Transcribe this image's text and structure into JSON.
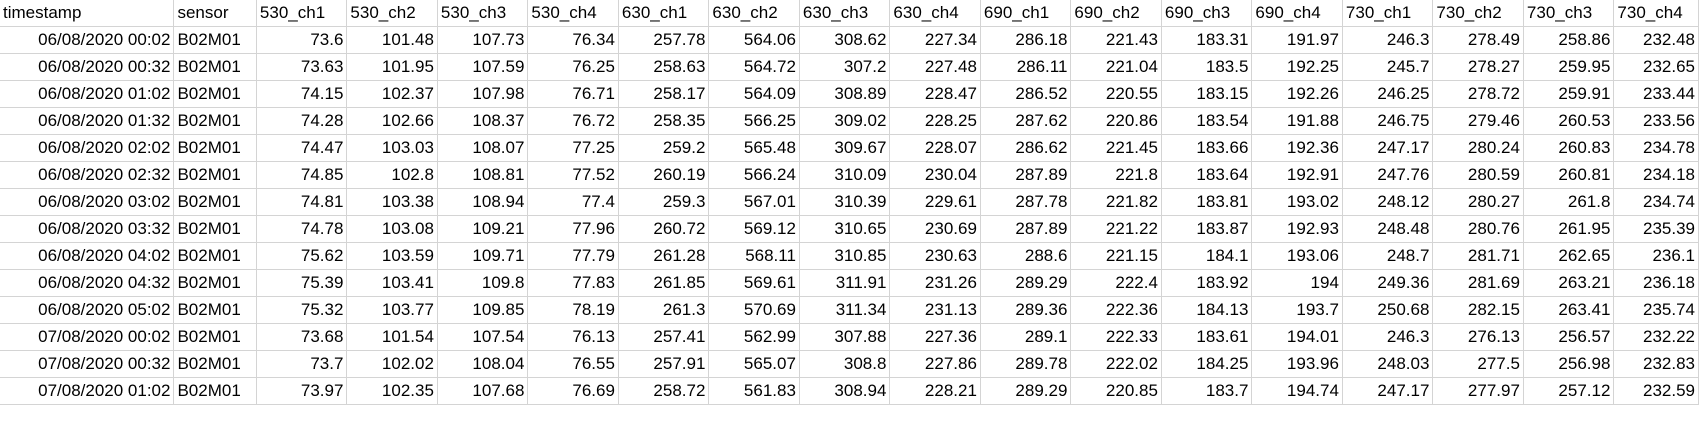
{
  "sheet": {
    "columns": [
      "timestamp",
      "sensor",
      "530_ch1",
      "530_ch2",
      "530_ch3",
      "530_ch4",
      "630_ch1",
      "630_ch2",
      "630_ch3",
      "630_ch4",
      "690_ch1",
      "690_ch2",
      "690_ch3",
      "690_ch4",
      "730_ch1",
      "730_ch2",
      "730_ch3",
      "730_ch4"
    ],
    "rows": [
      [
        "06/08/2020 00:02",
        "B02M01",
        "73.6",
        "101.48",
        "107.73",
        "76.34",
        "257.78",
        "564.06",
        "308.62",
        "227.34",
        "286.18",
        "221.43",
        "183.31",
        "191.97",
        "246.3",
        "278.49",
        "258.86",
        "232.48"
      ],
      [
        "06/08/2020 00:32",
        "B02M01",
        "73.63",
        "101.95",
        "107.59",
        "76.25",
        "258.63",
        "564.72",
        "307.2",
        "227.48",
        "286.11",
        "221.04",
        "183.5",
        "192.25",
        "245.7",
        "278.27",
        "259.95",
        "232.65"
      ],
      [
        "06/08/2020 01:02",
        "B02M01",
        "74.15",
        "102.37",
        "107.98",
        "76.71",
        "258.17",
        "564.09",
        "308.89",
        "228.47",
        "286.52",
        "220.55",
        "183.15",
        "192.26",
        "246.25",
        "278.72",
        "259.91",
        "233.44"
      ],
      [
        "06/08/2020 01:32",
        "B02M01",
        "74.28",
        "102.66",
        "108.37",
        "76.72",
        "258.35",
        "566.25",
        "309.02",
        "228.25",
        "287.62",
        "220.86",
        "183.54",
        "191.88",
        "246.75",
        "279.46",
        "260.53",
        "233.56"
      ],
      [
        "06/08/2020 02:02",
        "B02M01",
        "74.47",
        "103.03",
        "108.07",
        "77.25",
        "259.2",
        "565.48",
        "309.67",
        "228.07",
        "286.62",
        "221.45",
        "183.66",
        "192.36",
        "247.17",
        "280.24",
        "260.83",
        "234.78"
      ],
      [
        "06/08/2020 02:32",
        "B02M01",
        "74.85",
        "102.8",
        "108.81",
        "77.52",
        "260.19",
        "566.24",
        "310.09",
        "230.04",
        "287.89",
        "221.8",
        "183.64",
        "192.91",
        "247.76",
        "280.59",
        "260.81",
        "234.18"
      ],
      [
        "06/08/2020 03:02",
        "B02M01",
        "74.81",
        "103.38",
        "108.94",
        "77.4",
        "259.3",
        "567.01",
        "310.39",
        "229.61",
        "287.78",
        "221.82",
        "183.81",
        "193.02",
        "248.12",
        "280.27",
        "261.8",
        "234.74"
      ],
      [
        "06/08/2020 03:32",
        "B02M01",
        "74.78",
        "103.08",
        "109.21",
        "77.96",
        "260.72",
        "569.12",
        "310.65",
        "230.69",
        "287.89",
        "221.22",
        "183.87",
        "192.93",
        "248.48",
        "280.76",
        "261.95",
        "235.39"
      ],
      [
        "06/08/2020 04:02",
        "B02M01",
        "75.62",
        "103.59",
        "109.71",
        "77.79",
        "261.28",
        "568.11",
        "310.85",
        "230.63",
        "288.6",
        "221.15",
        "184.1",
        "193.06",
        "248.7",
        "281.71",
        "262.65",
        "236.1"
      ],
      [
        "06/08/2020 04:32",
        "B02M01",
        "75.39",
        "103.41",
        "109.8",
        "77.83",
        "261.85",
        "569.61",
        "311.91",
        "231.26",
        "289.29",
        "222.4",
        "183.92",
        "194",
        "249.36",
        "281.69",
        "263.21",
        "236.18"
      ],
      [
        "06/08/2020 05:02",
        "B02M01",
        "75.32",
        "103.77",
        "109.85",
        "78.19",
        "261.3",
        "570.69",
        "311.34",
        "231.13",
        "289.36",
        "222.36",
        "184.13",
        "193.7",
        "250.68",
        "282.15",
        "263.41",
        "235.74"
      ],
      [
        "07/08/2020 00:02",
        "B02M01",
        "73.68",
        "101.54",
        "107.54",
        "76.13",
        "257.41",
        "562.99",
        "307.88",
        "227.36",
        "289.1",
        "222.33",
        "183.61",
        "194.01",
        "246.3",
        "276.13",
        "256.57",
        "232.22"
      ],
      [
        "07/08/2020 00:32",
        "B02M01",
        "73.7",
        "102.02",
        "108.04",
        "76.55",
        "257.91",
        "565.07",
        "308.8",
        "227.86",
        "289.78",
        "222.02",
        "184.25",
        "193.96",
        "248.03",
        "277.5",
        "256.98",
        "232.83"
      ],
      [
        "07/08/2020 01:02",
        "B02M01",
        "73.97",
        "102.35",
        "107.68",
        "76.69",
        "258.72",
        "561.83",
        "308.94",
        "228.21",
        "289.29",
        "220.85",
        "183.7",
        "194.74",
        "247.17",
        "277.97",
        "257.12",
        "232.59"
      ]
    ]
  }
}
